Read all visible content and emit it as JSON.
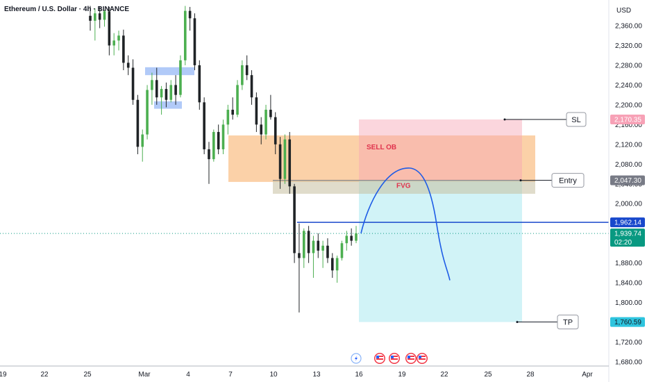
{
  "chart_data": {
    "type": "candlestick",
    "title": "Ethereum / U.S. Dollar · 4h · BINANCE",
    "currency": "USD",
    "y_ticks": [
      "2,360.00",
      "2,320.00",
      "2,280.00",
      "2,240.00",
      "2,200.00",
      "2,160.00",
      "2,120.00",
      "2,080.00",
      "2,040.00",
      "2,000.00",
      "1,960.00",
      "1,920.00",
      "1,880.00",
      "1,840.00",
      "1,800.00",
      "1,760.00",
      "1,720.00",
      "1,680.00"
    ],
    "y_tick_values": [
      2360,
      2320,
      2280,
      2240,
      2200,
      2160,
      2120,
      2080,
      2040,
      2000,
      1960,
      1920,
      1880,
      1840,
      1800,
      1760,
      1720,
      1680
    ],
    "x_ticks": [
      "19",
      "22",
      "25",
      "Mar",
      "4",
      "7",
      "10",
      "13",
      "16",
      "19",
      "22",
      "25",
      "28",
      "Apr"
    ],
    "ylim": [
      1676,
      2398
    ],
    "grid": false,
    "price_tags": [
      {
        "name": "sl-price",
        "label": "2,170.35",
        "value": 2170.35,
        "color": "#f7a1b6",
        "text_color": "#ffffff"
      },
      {
        "name": "entry-price",
        "label": "2,047.30",
        "value": 2047.3,
        "color": "#787b86",
        "text_color": "#ffffff"
      },
      {
        "name": "level-price",
        "label": "1,962.14",
        "value": 1962.14,
        "color": "#1848cc",
        "text_color": "#ffffff"
      },
      {
        "name": "current-price",
        "label": "1,939.74",
        "value": 1939.74,
        "color": "#089981",
        "text_color": "#ffffff",
        "sub": "02:20"
      },
      {
        "name": "tp-price",
        "label": "1,760.59",
        "value": 1760.59,
        "color": "#2ec4de",
        "text_color": "#131722"
      }
    ],
    "annotations": {
      "sell_ob": "SELL OB",
      "fvg": "FVG",
      "sl": "SL",
      "entry": "Entry",
      "tp": "TP"
    },
    "zones": {
      "sell_ob": {
        "top": 2138,
        "bottom": 2044
      },
      "fvg": {
        "top": 2047.3,
        "bottom": 2020
      },
      "risk": {
        "top": 2170.35,
        "bottom": 2047.3
      },
      "reward": {
        "top": 2047.3,
        "bottom": 1760.59
      },
      "blue_boxes": [
        {
          "top": 2276,
          "bottom": 2260
        },
        {
          "top": 2207,
          "bottom": 2192
        }
      ]
    },
    "candles": [
      {
        "o": 2380,
        "h": 2400,
        "l": 2350,
        "c": 2370
      },
      {
        "o": 2370,
        "h": 2395,
        "l": 2330,
        "c": 2385
      },
      {
        "o": 2385,
        "h": 2398,
        "l": 2355,
        "c": 2372
      },
      {
        "o": 2372,
        "h": 2392,
        "l": 2358,
        "c": 2389
      },
      {
        "o": 2389,
        "h": 2398,
        "l": 2300,
        "c": 2320
      },
      {
        "o": 2320,
        "h": 2345,
        "l": 2300,
        "c": 2330
      },
      {
        "o": 2330,
        "h": 2350,
        "l": 2310,
        "c": 2340
      },
      {
        "o": 2340,
        "h": 2352,
        "l": 2270,
        "c": 2285
      },
      {
        "o": 2285,
        "h": 2300,
        "l": 2260,
        "c": 2275
      },
      {
        "o": 2275,
        "h": 2292,
        "l": 2200,
        "c": 2210
      },
      {
        "o": 2210,
        "h": 2220,
        "l": 2100,
        "c": 2115
      },
      {
        "o": 2115,
        "h": 2150,
        "l": 2085,
        "c": 2140
      },
      {
        "o": 2140,
        "h": 2240,
        "l": 2130,
        "c": 2230
      },
      {
        "o": 2230,
        "h": 2265,
        "l": 2200,
        "c": 2250
      },
      {
        "o": 2250,
        "h": 2275,
        "l": 2200,
        "c": 2215
      },
      {
        "o": 2215,
        "h": 2238,
        "l": 2180,
        "c": 2232
      },
      {
        "o": 2232,
        "h": 2245,
        "l": 2195,
        "c": 2210
      },
      {
        "o": 2210,
        "h": 2250,
        "l": 2205,
        "c": 2240
      },
      {
        "o": 2240,
        "h": 2260,
        "l": 2200,
        "c": 2220
      },
      {
        "o": 2220,
        "h": 2300,
        "l": 2215,
        "c": 2290
      },
      {
        "o": 2290,
        "h": 2400,
        "l": 2280,
        "c": 2390
      },
      {
        "o": 2390,
        "h": 2398,
        "l": 2350,
        "c": 2375
      },
      {
        "o": 2375,
        "h": 2385,
        "l": 2270,
        "c": 2280
      },
      {
        "o": 2280,
        "h": 2290,
        "l": 2190,
        "c": 2205
      },
      {
        "o": 2205,
        "h": 2215,
        "l": 2100,
        "c": 2110
      },
      {
        "o": 2110,
        "h": 2125,
        "l": 2040,
        "c": 2090
      },
      {
        "o": 2090,
        "h": 2150,
        "l": 2085,
        "c": 2145
      },
      {
        "o": 2145,
        "h": 2160,
        "l": 2100,
        "c": 2110
      },
      {
        "o": 2110,
        "h": 2170,
        "l": 2100,
        "c": 2160
      },
      {
        "o": 2160,
        "h": 2200,
        "l": 2140,
        "c": 2190
      },
      {
        "o": 2190,
        "h": 2215,
        "l": 2170,
        "c": 2180
      },
      {
        "o": 2180,
        "h": 2250,
        "l": 2175,
        "c": 2240
      },
      {
        "o": 2240,
        "h": 2290,
        "l": 2230,
        "c": 2280
      },
      {
        "o": 2280,
        "h": 2300,
        "l": 2250,
        "c": 2260
      },
      {
        "o": 2260,
        "h": 2270,
        "l": 2200,
        "c": 2215
      },
      {
        "o": 2215,
        "h": 2225,
        "l": 2145,
        "c": 2160
      },
      {
        "o": 2160,
        "h": 2175,
        "l": 2120,
        "c": 2140
      },
      {
        "o": 2140,
        "h": 2200,
        "l": 2130,
        "c": 2190
      },
      {
        "o": 2190,
        "h": 2220,
        "l": 2170,
        "c": 2175
      },
      {
        "o": 2175,
        "h": 2185,
        "l": 2100,
        "c": 2120
      },
      {
        "o": 2120,
        "h": 2135,
        "l": 2030,
        "c": 2050
      },
      {
        "o": 2050,
        "h": 2140,
        "l": 2040,
        "c": 2130
      },
      {
        "o": 2130,
        "h": 2145,
        "l": 2020,
        "c": 2035
      },
      {
        "o": 2035,
        "h": 2040,
        "l": 1880,
        "c": 1900
      },
      {
        "o": 1900,
        "h": 1960,
        "l": 1780,
        "c": 1890
      },
      {
        "o": 1890,
        "h": 1950,
        "l": 1870,
        "c": 1945
      },
      {
        "o": 1945,
        "h": 1955,
        "l": 1880,
        "c": 1900
      },
      {
        "o": 1900,
        "h": 1935,
        "l": 1850,
        "c": 1925
      },
      {
        "o": 1925,
        "h": 1940,
        "l": 1890,
        "c": 1905
      },
      {
        "o": 1905,
        "h": 1925,
        "l": 1870,
        "c": 1915
      },
      {
        "o": 1915,
        "h": 1930,
        "l": 1880,
        "c": 1890
      },
      {
        "o": 1890,
        "h": 1900,
        "l": 1850,
        "c": 1865
      },
      {
        "o": 1865,
        "h": 1895,
        "l": 1840,
        "c": 1890
      },
      {
        "o": 1890,
        "h": 1925,
        "l": 1885,
        "c": 1920
      },
      {
        "o": 1920,
        "h": 1945,
        "l": 1905,
        "c": 1935
      },
      {
        "o": 1935,
        "h": 1950,
        "l": 1915,
        "c": 1925
      },
      {
        "o": 1925,
        "h": 1955,
        "l": 1920,
        "c": 1940
      }
    ],
    "projection_curve": [
      [
        1940,
        0
      ],
      [
        2025,
        0.3
      ],
      [
        2072,
        0.55
      ],
      [
        2035,
        0.75
      ],
      [
        1845,
        1
      ]
    ]
  }
}
